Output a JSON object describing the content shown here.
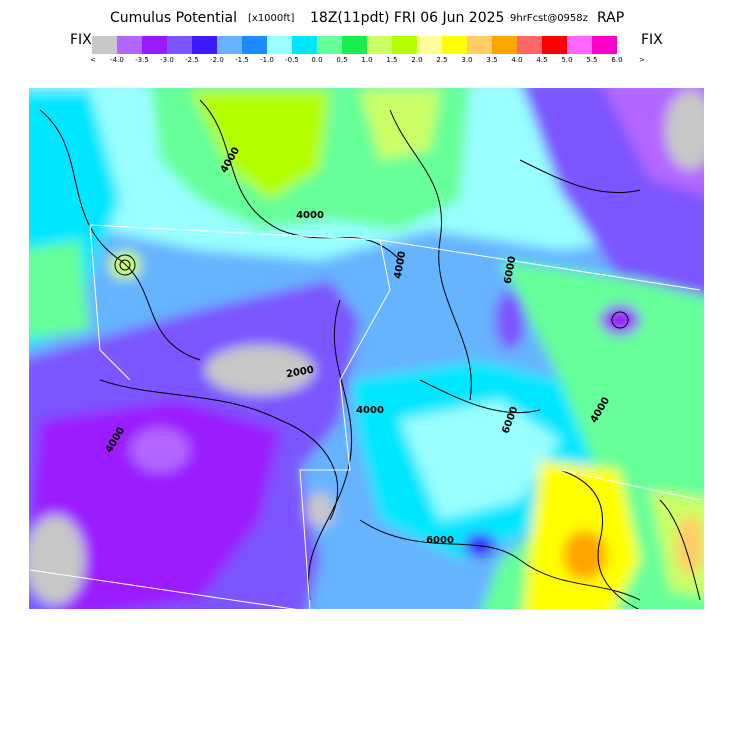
{
  "header": {
    "title": "Cumulus Potential",
    "units": "[x1000ft]",
    "time": "18Z(11pdt) FRI 06 Jun 2025",
    "forecast": "9hrFcst@0958z",
    "model": "RAP"
  },
  "colorbar": {
    "left_label": "FIX",
    "right_label": "FIX",
    "left_arrow": "<",
    "right_arrow": ">",
    "colors": [
      "#c8c8c8",
      "#b366ff",
      "#9a1aff",
      "#7b55ff",
      "#3e1aff",
      "#66b3ff",
      "#1a8cff",
      "#99ffff",
      "#00e6ff",
      "#66ff99",
      "#1aee4d",
      "#ccff66",
      "#b3ff00",
      "#ffff99",
      "#ffff00",
      "#ffcc66",
      "#ffa500",
      "#ff6666",
      "#ff0000",
      "#ff66ff",
      "#ff00cc"
    ],
    "labels": [
      "-4.0",
      "-3.5",
      "-3.0",
      "-2.5",
      "-2.0",
      "-1.5",
      "-1.0",
      "-0.5",
      "0.0",
      "0.5",
      "1.0",
      "1.5",
      "2.0",
      "2.5",
      "3.0",
      "3.5",
      "4.0",
      "4.5",
      "5.0",
      "5.5",
      "6.0"
    ]
  },
  "map": {
    "contour_labels": [
      "4000",
      "4000",
      "4000",
      "6000",
      "4000",
      "6000",
      "6000",
      "4000",
      "2000",
      "4000"
    ]
  }
}
